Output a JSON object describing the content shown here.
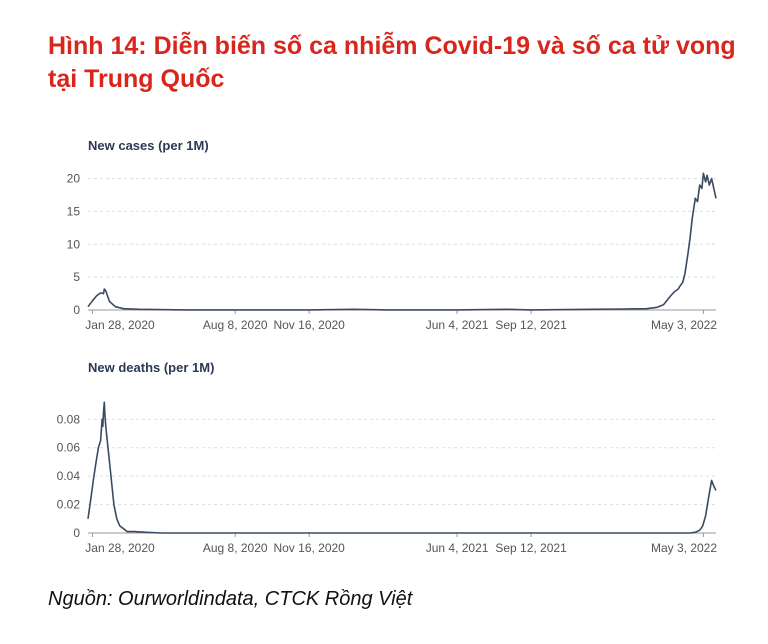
{
  "figure_title": "Hình 14: Diễn biến số ca nhiễm Covid-19 và số ca tử vong tại Trung Quốc",
  "source": "Nguồn: Ourworldindata, CTCK Rồng Việt",
  "colors": {
    "title": "#d9261c",
    "line": "#3b4a63",
    "grid": "#dddddd",
    "axis": "#999999",
    "tick_text": "#555555",
    "chart_title": "#2b3a55"
  },
  "chart_data": [
    {
      "type": "line",
      "title": "New cases (per 1M)",
      "x_tick_labels": [
        "Jan 28, 2020",
        "Aug 8, 2020",
        "Nov 16, 2020",
        "Jun 4, 2021",
        "Sep 12, 2021",
        "May 3, 2022"
      ],
      "x_range": [
        "2020-01-22",
        "2022-05-20"
      ],
      "y_ticks": [
        0,
        5,
        10,
        15,
        20
      ],
      "ylim": [
        0,
        21
      ],
      "grid": true,
      "series": [
        {
          "x": [
            "2020-01-22",
            "2020-01-28",
            "2020-02-03",
            "2020-02-08",
            "2020-02-12",
            "2020-02-13",
            "2020-02-15",
            "2020-02-20",
            "2020-02-28",
            "2020-03-10",
            "2020-04-01",
            "2020-06-01",
            "2020-08-08",
            "2020-11-16",
            "2021-01-15",
            "2021-03-01",
            "2021-06-04",
            "2021-08-10",
            "2021-09-12",
            "2021-12-01",
            "2022-01-15",
            "2022-02-15",
            "2022-03-01",
            "2022-03-10",
            "2022-03-15",
            "2022-03-20",
            "2022-03-25",
            "2022-03-30",
            "2022-04-01",
            "2022-04-05",
            "2022-04-08",
            "2022-04-12",
            "2022-04-15",
            "2022-04-18",
            "2022-04-22",
            "2022-04-25",
            "2022-04-28",
            "2022-05-01",
            "2022-05-03",
            "2022-05-06",
            "2022-05-08",
            "2022-05-11",
            "2022-05-14",
            "2022-05-17",
            "2022-05-20"
          ],
          "y": [
            0.5,
            1.4,
            2.2,
            2.6,
            2.5,
            3.2,
            2.9,
            1.3,
            0.5,
            0.2,
            0.1,
            0.02,
            0.02,
            0.02,
            0.1,
            0.02,
            0.02,
            0.1,
            0.02,
            0.1,
            0.15,
            0.2,
            0.4,
            0.8,
            1.5,
            2.2,
            2.8,
            3.2,
            3.6,
            4.2,
            5.5,
            8.5,
            11,
            14,
            17,
            16.5,
            19,
            18.5,
            20.8,
            19.5,
            20.5,
            19,
            20,
            18.5,
            17
          ]
        }
      ]
    },
    {
      "type": "line",
      "title": "New deaths (per 1M)",
      "x_tick_labels": [
        "Jan 28, 2020",
        "Aug 8, 2020",
        "Nov 16, 2020",
        "Jun 4, 2021",
        "Sep 12, 2021",
        "May 3, 2022"
      ],
      "x_range": [
        "2020-01-22",
        "2022-05-20"
      ],
      "y_ticks": [
        0,
        0.02,
        0.04,
        0.06,
        0.08
      ],
      "ylim": [
        0,
        0.095
      ],
      "grid": true,
      "series": [
        {
          "x": [
            "2020-01-22",
            "2020-01-26",
            "2020-01-30",
            "2020-02-02",
            "2020-02-05",
            "2020-02-08",
            "2020-02-10",
            "2020-02-11",
            "2020-02-12",
            "2020-02-13",
            "2020-02-14",
            "2020-02-15",
            "2020-02-16",
            "2020-02-18",
            "2020-02-20",
            "2020-02-23",
            "2020-02-26",
            "2020-03-01",
            "2020-03-05",
            "2020-03-10",
            "2020-03-15",
            "2020-03-25",
            "2020-04-10",
            "2020-05-01",
            "2022-04-01",
            "2022-04-15",
            "2022-04-22",
            "2022-04-28",
            "2022-05-02",
            "2022-05-06",
            "2022-05-10",
            "2022-05-14",
            "2022-05-17",
            "2022-05-20"
          ],
          "y": [
            0.01,
            0.025,
            0.04,
            0.05,
            0.06,
            0.065,
            0.08,
            0.075,
            0.085,
            0.092,
            0.082,
            0.075,
            0.07,
            0.06,
            0.05,
            0.035,
            0.02,
            0.01,
            0.005,
            0.003,
            0.001,
            0.001,
            0.0005,
            0,
            0,
            0,
            0.0005,
            0.002,
            0.005,
            0.012,
            0.025,
            0.037,
            0.033,
            0.03
          ]
        }
      ]
    }
  ]
}
